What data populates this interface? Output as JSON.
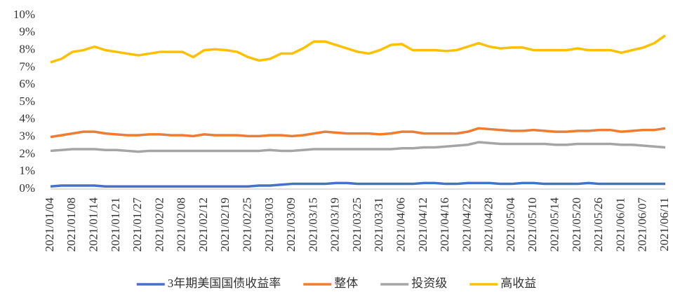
{
  "chart_data": {
    "type": "line",
    "categories": [
      "2021/01/04",
      null,
      "2021/01/08",
      null,
      "2021/01/14",
      null,
      "2021/01/21",
      null,
      "2021/01/27",
      null,
      "2021/02/02",
      null,
      "2021/02/08",
      null,
      "2021/02/12",
      null,
      "2021/02/19",
      null,
      "2021/02/25",
      null,
      "2021/03/03",
      null,
      "2021/03/09",
      null,
      "2021/03/15",
      null,
      "2021/03/19",
      null,
      "2021/03/25",
      null,
      "2021/03/31",
      null,
      "2021/04/06",
      null,
      "2021/04/12",
      null,
      "2021/04/16",
      null,
      "2021/04/22",
      null,
      "2021/04/28",
      null,
      "2021/05/04",
      null,
      "2021/05/10",
      null,
      "2021/05/14",
      null,
      "2021/05/20",
      null,
      "2021/05/26",
      null,
      "2021/06/01",
      null,
      "2021/06/07",
      null,
      "2021/06/11"
    ],
    "series": [
      {
        "name": "3年期美国国债收益率",
        "color": "#4472c4",
        "values": [
          0.15,
          0.2,
          0.2,
          0.2,
          0.2,
          0.15,
          0.15,
          0.15,
          0.15,
          0.15,
          0.15,
          0.15,
          0.15,
          0.15,
          0.15,
          0.15,
          0.15,
          0.15,
          0.15,
          0.2,
          0.2,
          0.25,
          0.3,
          0.3,
          0.3,
          0.3,
          0.35,
          0.35,
          0.3,
          0.3,
          0.3,
          0.3,
          0.3,
          0.3,
          0.35,
          0.35,
          0.3,
          0.3,
          0.35,
          0.35,
          0.35,
          0.3,
          0.3,
          0.35,
          0.35,
          0.3,
          0.3,
          0.3,
          0.3,
          0.35,
          0.3,
          0.3,
          0.3,
          0.3,
          0.3,
          0.3,
          0.3
        ]
      },
      {
        "name": "整体",
        "color": "#ed7d31",
        "values": [
          3.0,
          3.1,
          3.2,
          3.3,
          3.3,
          3.2,
          3.15,
          3.1,
          3.1,
          3.15,
          3.15,
          3.1,
          3.1,
          3.05,
          3.15,
          3.1,
          3.1,
          3.1,
          3.05,
          3.05,
          3.1,
          3.1,
          3.05,
          3.1,
          3.2,
          3.3,
          3.25,
          3.2,
          3.2,
          3.2,
          3.15,
          3.2,
          3.3,
          3.3,
          3.2,
          3.2,
          3.2,
          3.2,
          3.3,
          3.5,
          3.45,
          3.4,
          3.35,
          3.35,
          3.4,
          3.35,
          3.3,
          3.3,
          3.35,
          3.35,
          3.4,
          3.4,
          3.3,
          3.35,
          3.4,
          3.4,
          3.5
        ]
      },
      {
        "name": "投资级",
        "color": "#a5a5a5",
        "values": [
          2.2,
          2.25,
          2.3,
          2.3,
          2.3,
          2.25,
          2.25,
          2.2,
          2.15,
          2.2,
          2.2,
          2.2,
          2.2,
          2.2,
          2.2,
          2.2,
          2.2,
          2.2,
          2.2,
          2.2,
          2.25,
          2.2,
          2.2,
          2.25,
          2.3,
          2.3,
          2.3,
          2.3,
          2.3,
          2.3,
          2.3,
          2.3,
          2.35,
          2.35,
          2.4,
          2.4,
          2.45,
          2.5,
          2.55,
          2.7,
          2.65,
          2.6,
          2.6,
          2.6,
          2.6,
          2.6,
          2.55,
          2.55,
          2.6,
          2.6,
          2.6,
          2.6,
          2.55,
          2.55,
          2.5,
          2.45,
          2.4
        ]
      },
      {
        "name": "高收益",
        "color": "#ffc000",
        "values": [
          7.3,
          7.5,
          7.9,
          8.0,
          8.2,
          8.0,
          7.9,
          7.8,
          7.7,
          7.8,
          7.9,
          7.9,
          7.9,
          7.6,
          8.0,
          8.05,
          8.0,
          7.9,
          7.6,
          7.4,
          7.5,
          7.8,
          7.8,
          8.1,
          8.5,
          8.5,
          8.3,
          8.1,
          7.9,
          7.8,
          8.0,
          8.3,
          8.35,
          8.0,
          8.0,
          8.0,
          7.95,
          8.0,
          8.2,
          8.4,
          8.2,
          8.1,
          8.15,
          8.15,
          8.0,
          8.0,
          8.0,
          8.0,
          8.1,
          8.0,
          8.0,
          8.0,
          7.85,
          8.0,
          8.15,
          8.4,
          8.85
        ]
      }
    ],
    "ylim": [
      0,
      10
    ],
    "yticks": [
      {
        "value": 0,
        "label": "0%"
      },
      {
        "value": 1,
        "label": "1%"
      },
      {
        "value": 2,
        "label": "2%"
      },
      {
        "value": 3,
        "label": "3%"
      },
      {
        "value": 4,
        "label": "4%"
      },
      {
        "value": 5,
        "label": "5%"
      },
      {
        "value": 6,
        "label": "6%"
      },
      {
        "value": 7,
        "label": "7%"
      },
      {
        "value": 8,
        "label": "8%"
      },
      {
        "value": 9,
        "label": "9%"
      },
      {
        "value": 10,
        "label": "10%"
      }
    ],
    "grid": false,
    "legend": "bottom"
  }
}
